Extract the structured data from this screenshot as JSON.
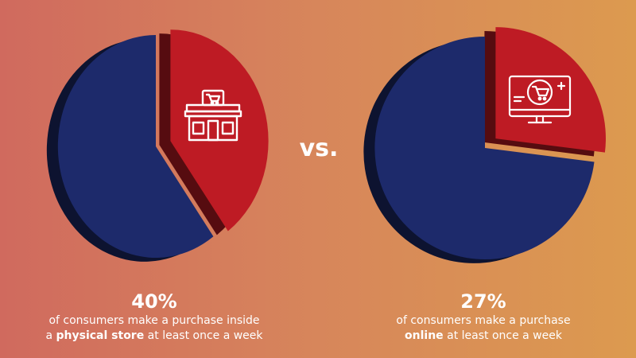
{
  "chart_data": [
    {
      "type": "pie",
      "slices": [
        {
          "label": "physical store",
          "value": 40,
          "color": "#be1b24",
          "exploded": true
        },
        {
          "label": "",
          "value": 60,
          "color": "#1d2a6b"
        }
      ],
      "icon": "storefront-icon"
    },
    {
      "type": "pie",
      "slices": [
        {
          "label": "online",
          "value": 27,
          "color": "#be1b24",
          "exploded": true
        },
        {
          "label": "",
          "value": 73,
          "color": "#1d2a6b"
        }
      ],
      "icon": "online-shopping-monitor-icon"
    }
  ],
  "vs_label": "vs.",
  "captions": [
    {
      "percent": "40%",
      "line1": "of consumers make a purchase inside",
      "line2_pre": "a ",
      "line2_bold": "physical store",
      "line2_post": " at least once a week"
    },
    {
      "percent": "27%",
      "line1": "of consumers make a purchase",
      "line2_pre": "",
      "line2_bold": "online",
      "line2_post": " at least once a week"
    }
  ]
}
